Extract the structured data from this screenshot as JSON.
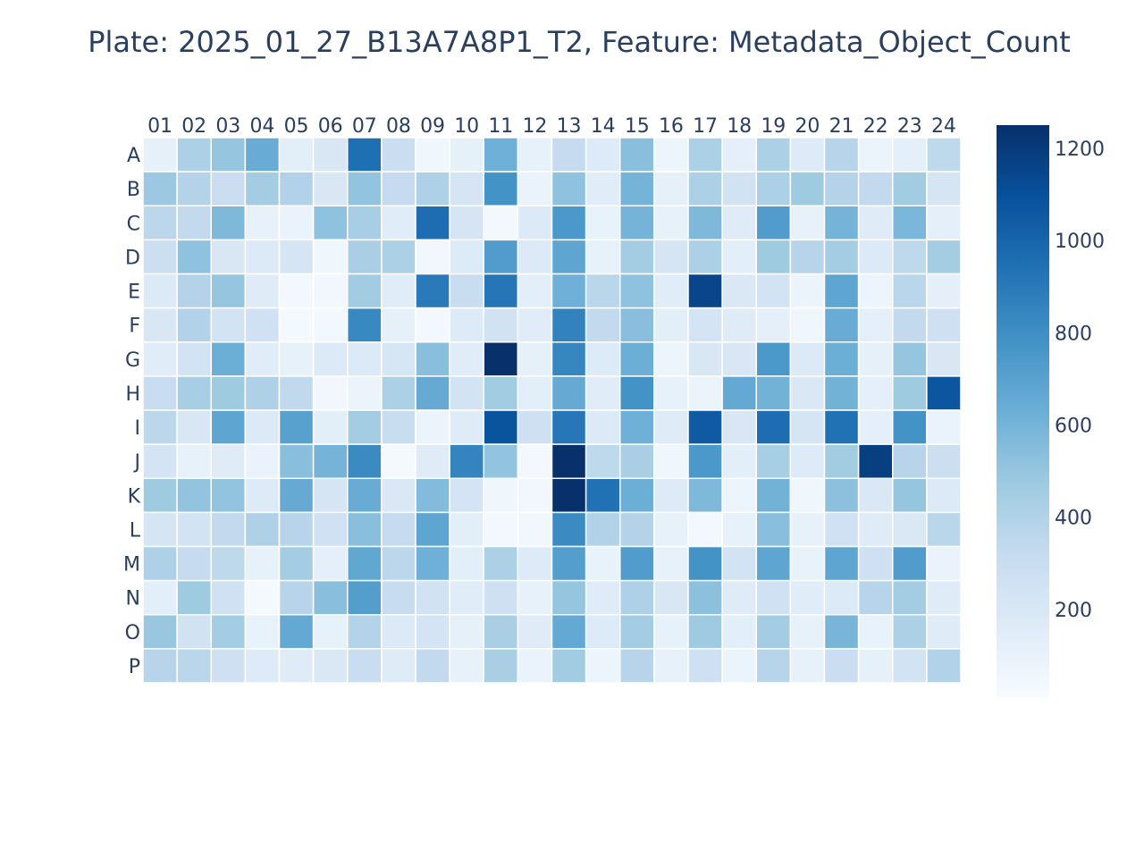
{
  "chart_data": {
    "type": "heatmap",
    "title": "Plate: 2025_01_27_B13A7A8P1_T2, Feature: Metadata_Object_Count",
    "x_categories": [
      "01",
      "02",
      "03",
      "04",
      "05",
      "06",
      "07",
      "08",
      "09",
      "10",
      "11",
      "12",
      "13",
      "14",
      "15",
      "16",
      "17",
      "18",
      "19",
      "20",
      "21",
      "22",
      "23",
      "24"
    ],
    "y_categories": [
      "A",
      "B",
      "C",
      "D",
      "E",
      "F",
      "G",
      "H",
      "I",
      "J",
      "K",
      "L",
      "M",
      "N",
      "O",
      "P"
    ],
    "colorscale": "Blues",
    "zmin": 10,
    "zmax": 1250,
    "colorbar_ticks": [
      200,
      400,
      600,
      800,
      1000,
      1200
    ],
    "grid_color": "#ffffff",
    "z": [
      [
        120,
        420,
        500,
        640,
        140,
        200,
        950,
        290,
        60,
        120,
        620,
        110,
        320,
        170,
        540,
        70,
        420,
        130,
        420,
        170,
        380,
        80,
        130,
        350
      ],
      [
        480,
        390,
        290,
        450,
        400,
        200,
        510,
        320,
        410,
        220,
        780,
        90,
        520,
        150,
        600,
        120,
        420,
        250,
        420,
        470,
        390,
        330,
        460,
        220
      ],
      [
        360,
        330,
        570,
        110,
        90,
        520,
        440,
        150,
        960,
        220,
        40,
        180,
        750,
        100,
        600,
        110,
        570,
        160,
        730,
        110,
        600,
        160,
        580,
        130
      ],
      [
        280,
        520,
        200,
        180,
        220,
        60,
        430,
        420,
        50,
        170,
        730,
        180,
        680,
        110,
        450,
        220,
        420,
        140,
        470,
        380,
        450,
        180,
        350,
        450
      ],
      [
        180,
        390,
        500,
        160,
        40,
        50,
        460,
        150,
        900,
        300,
        920,
        140,
        620,
        370,
        520,
        150,
        1150,
        190,
        240,
        80,
        680,
        70,
        370,
        130
      ],
      [
        200,
        400,
        240,
        260,
        30,
        40,
        830,
        120,
        40,
        170,
        250,
        150,
        860,
        330,
        540,
        140,
        230,
        160,
        130,
        60,
        640,
        130,
        330,
        270
      ],
      [
        150,
        240,
        630,
        150,
        110,
        180,
        180,
        210,
        540,
        150,
        1250,
        120,
        840,
        170,
        630,
        70,
        200,
        200,
        750,
        180,
        630,
        120,
        500,
        200
      ],
      [
        300,
        440,
        470,
        410,
        340,
        50,
        80,
        420,
        650,
        240,
        460,
        140,
        650,
        150,
        780,
        110,
        80,
        660,
        610,
        190,
        610,
        130,
        470,
        1070
      ],
      [
        360,
        200,
        680,
        180,
        700,
        140,
        450,
        300,
        80,
        160,
        1080,
        270,
        910,
        180,
        620,
        160,
        1050,
        200,
        960,
        220,
        940,
        130,
        780,
        90
      ],
      [
        230,
        110,
        160,
        90,
        540,
        600,
        820,
        30,
        160,
        850,
        510,
        40,
        1250,
        350,
        430,
        60,
        750,
        140,
        440,
        170,
        460,
        1180,
        380,
        280
      ],
      [
        470,
        510,
        510,
        170,
        650,
        220,
        640,
        190,
        560,
        230,
        60,
        50,
        1250,
        940,
        630,
        170,
        570,
        70,
        610,
        60,
        530,
        190,
        500,
        180
      ],
      [
        220,
        240,
        330,
        410,
        380,
        260,
        540,
        320,
        680,
        140,
        40,
        50,
        820,
        400,
        390,
        110,
        40,
        110,
        540,
        110,
        260,
        160,
        190,
        370
      ],
      [
        410,
        320,
        350,
        110,
        450,
        130,
        670,
        360,
        620,
        140,
        420,
        170,
        720,
        100,
        730,
        110,
        780,
        240,
        680,
        100,
        680,
        270,
        730,
        90
      ],
      [
        140,
        470,
        260,
        30,
        380,
        540,
        720,
        310,
        250,
        150,
        270,
        110,
        500,
        160,
        410,
        200,
        530,
        160,
        260,
        150,
        180,
        380,
        450,
        160
      ],
      [
        490,
        250,
        450,
        100,
        660,
        110,
        390,
        180,
        230,
        120,
        430,
        160,
        660,
        170,
        450,
        110,
        470,
        140,
        450,
        110,
        590,
        100,
        420,
        160
      ],
      [
        380,
        370,
        270,
        170,
        160,
        190,
        300,
        160,
        330,
        110,
        430,
        90,
        460,
        70,
        380,
        110,
        270,
        80,
        380,
        110,
        290,
        120,
        240,
        400
      ]
    ]
  }
}
